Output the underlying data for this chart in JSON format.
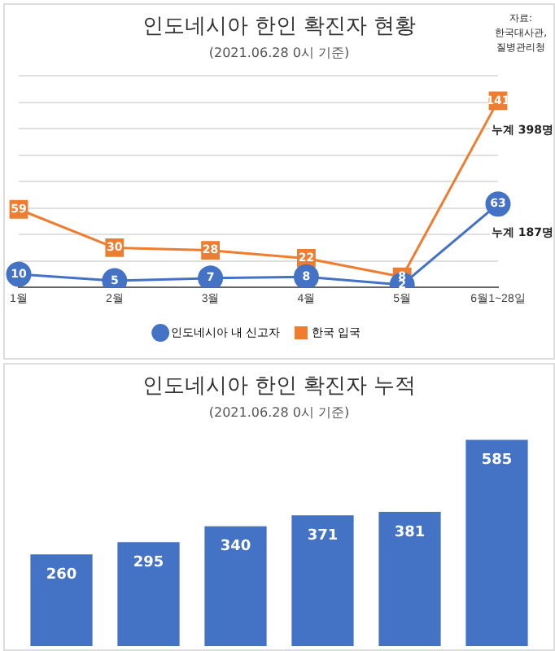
{
  "chart_data": [
    {
      "type": "line",
      "title": "인도네시아 한인 확진자 현황",
      "subtitle": "(2021.06.28 0시 기준)",
      "categories": [
        "1월",
        "2월",
        "3월",
        "4월",
        "5월",
        "6월1~28일"
      ],
      "series": [
        {
          "name": "인도네시아 내 신고자",
          "color": "#4472c4",
          "marker": "circle",
          "values": [
            10,
            5,
            7,
            8,
            2,
            63
          ]
        },
        {
          "name": "한국 입국",
          "color": "#ed7d31",
          "marker": "square",
          "values": [
            59,
            30,
            28,
            22,
            8,
            141
          ]
        }
      ],
      "ylim": [
        0,
        160
      ],
      "yticks": [
        {
          "value": 0,
          "label": null
        },
        {
          "value": 20,
          "label": null
        },
        {
          "value": 40,
          "label": null
        },
        {
          "value": 60,
          "label": null
        },
        {
          "value": 80,
          "label": null
        },
        {
          "value": 100,
          "label": null
        },
        {
          "value": 120,
          "label": null
        },
        {
          "value": 140,
          "label": null
        },
        {
          "value": 160,
          "label": null
        }
      ],
      "grid": "y",
      "tick_labels": "x",
      "legend": "bottom",
      "data_labels": true,
      "annotations": [
        {
          "text": "누계 398명",
          "x": "6월1~28일",
          "y": 141
        },
        {
          "text": "누계 187명",
          "x": "6월1~28일",
          "y": 63
        },
        "자료:\n한국대사관,\n질병관리청"
      ]
    },
    {
      "type": "bar",
      "title": "인도네시아 한인 확진자 누적",
      "subtitle": "(2021.06.28 0시 기준)",
      "categories": [
        null,
        null,
        null,
        null,
        null,
        null
      ],
      "values": [
        260,
        295,
        340,
        371,
        381,
        585
      ],
      "color": "#4472c4",
      "tick_labels": false,
      "grid": false,
      "legend": false,
      "data_labels": true
    }
  ]
}
